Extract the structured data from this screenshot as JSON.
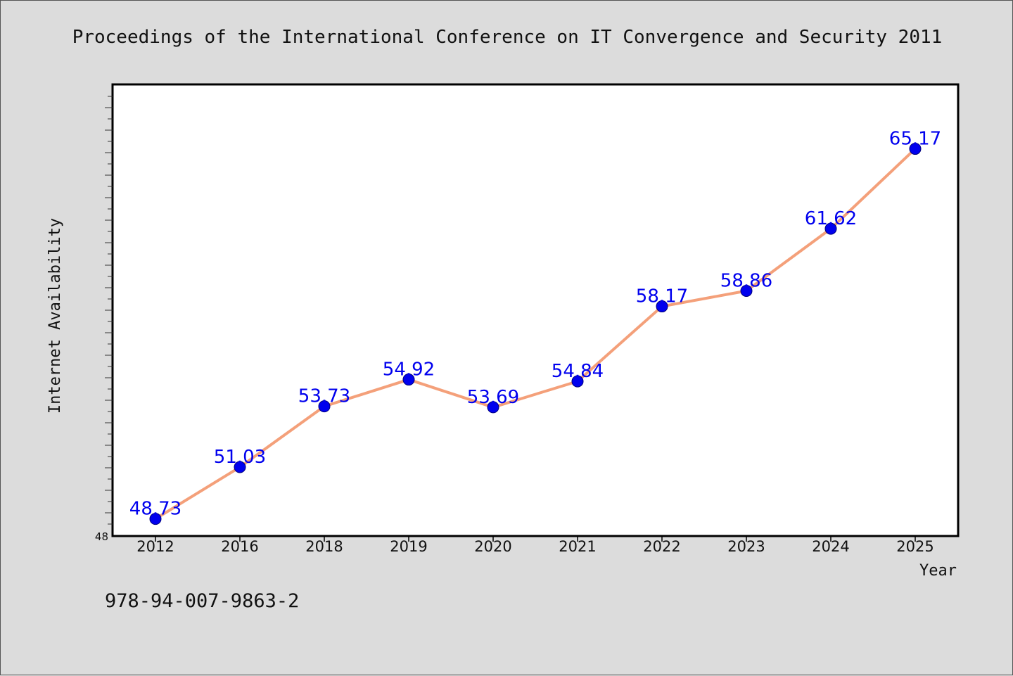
{
  "chart_data": {
    "type": "line",
    "title": "Proceedings of the International Conference on IT Convergence and Security 2011",
    "xlabel": "Year",
    "ylabel": "Internet Availability",
    "categories": [
      "2012",
      "2016",
      "2018",
      "2019",
      "2020",
      "2021",
      "2022",
      "2023",
      "2024",
      "2025"
    ],
    "series": [
      {
        "values": [
          48.73,
          51.03,
          53.73,
          54.92,
          53.69,
          54.84,
          58.17,
          58.86,
          61.62,
          65.17
        ],
        "labels": [
          "48.73",
          "51.03",
          "53.73",
          "54.92",
          "53.69",
          "54.84",
          "58.17",
          "58.86",
          "61.62",
          "65.17"
        ]
      }
    ],
    "ylim": [
      48,
      68
    ],
    "y_tick_label": "48",
    "grid": false,
    "line_color": "#f4a07a",
    "marker_color": "#0000ee",
    "label_color": "#0000ee"
  },
  "footer": {
    "isbn": "978-94-007-9863-2"
  }
}
